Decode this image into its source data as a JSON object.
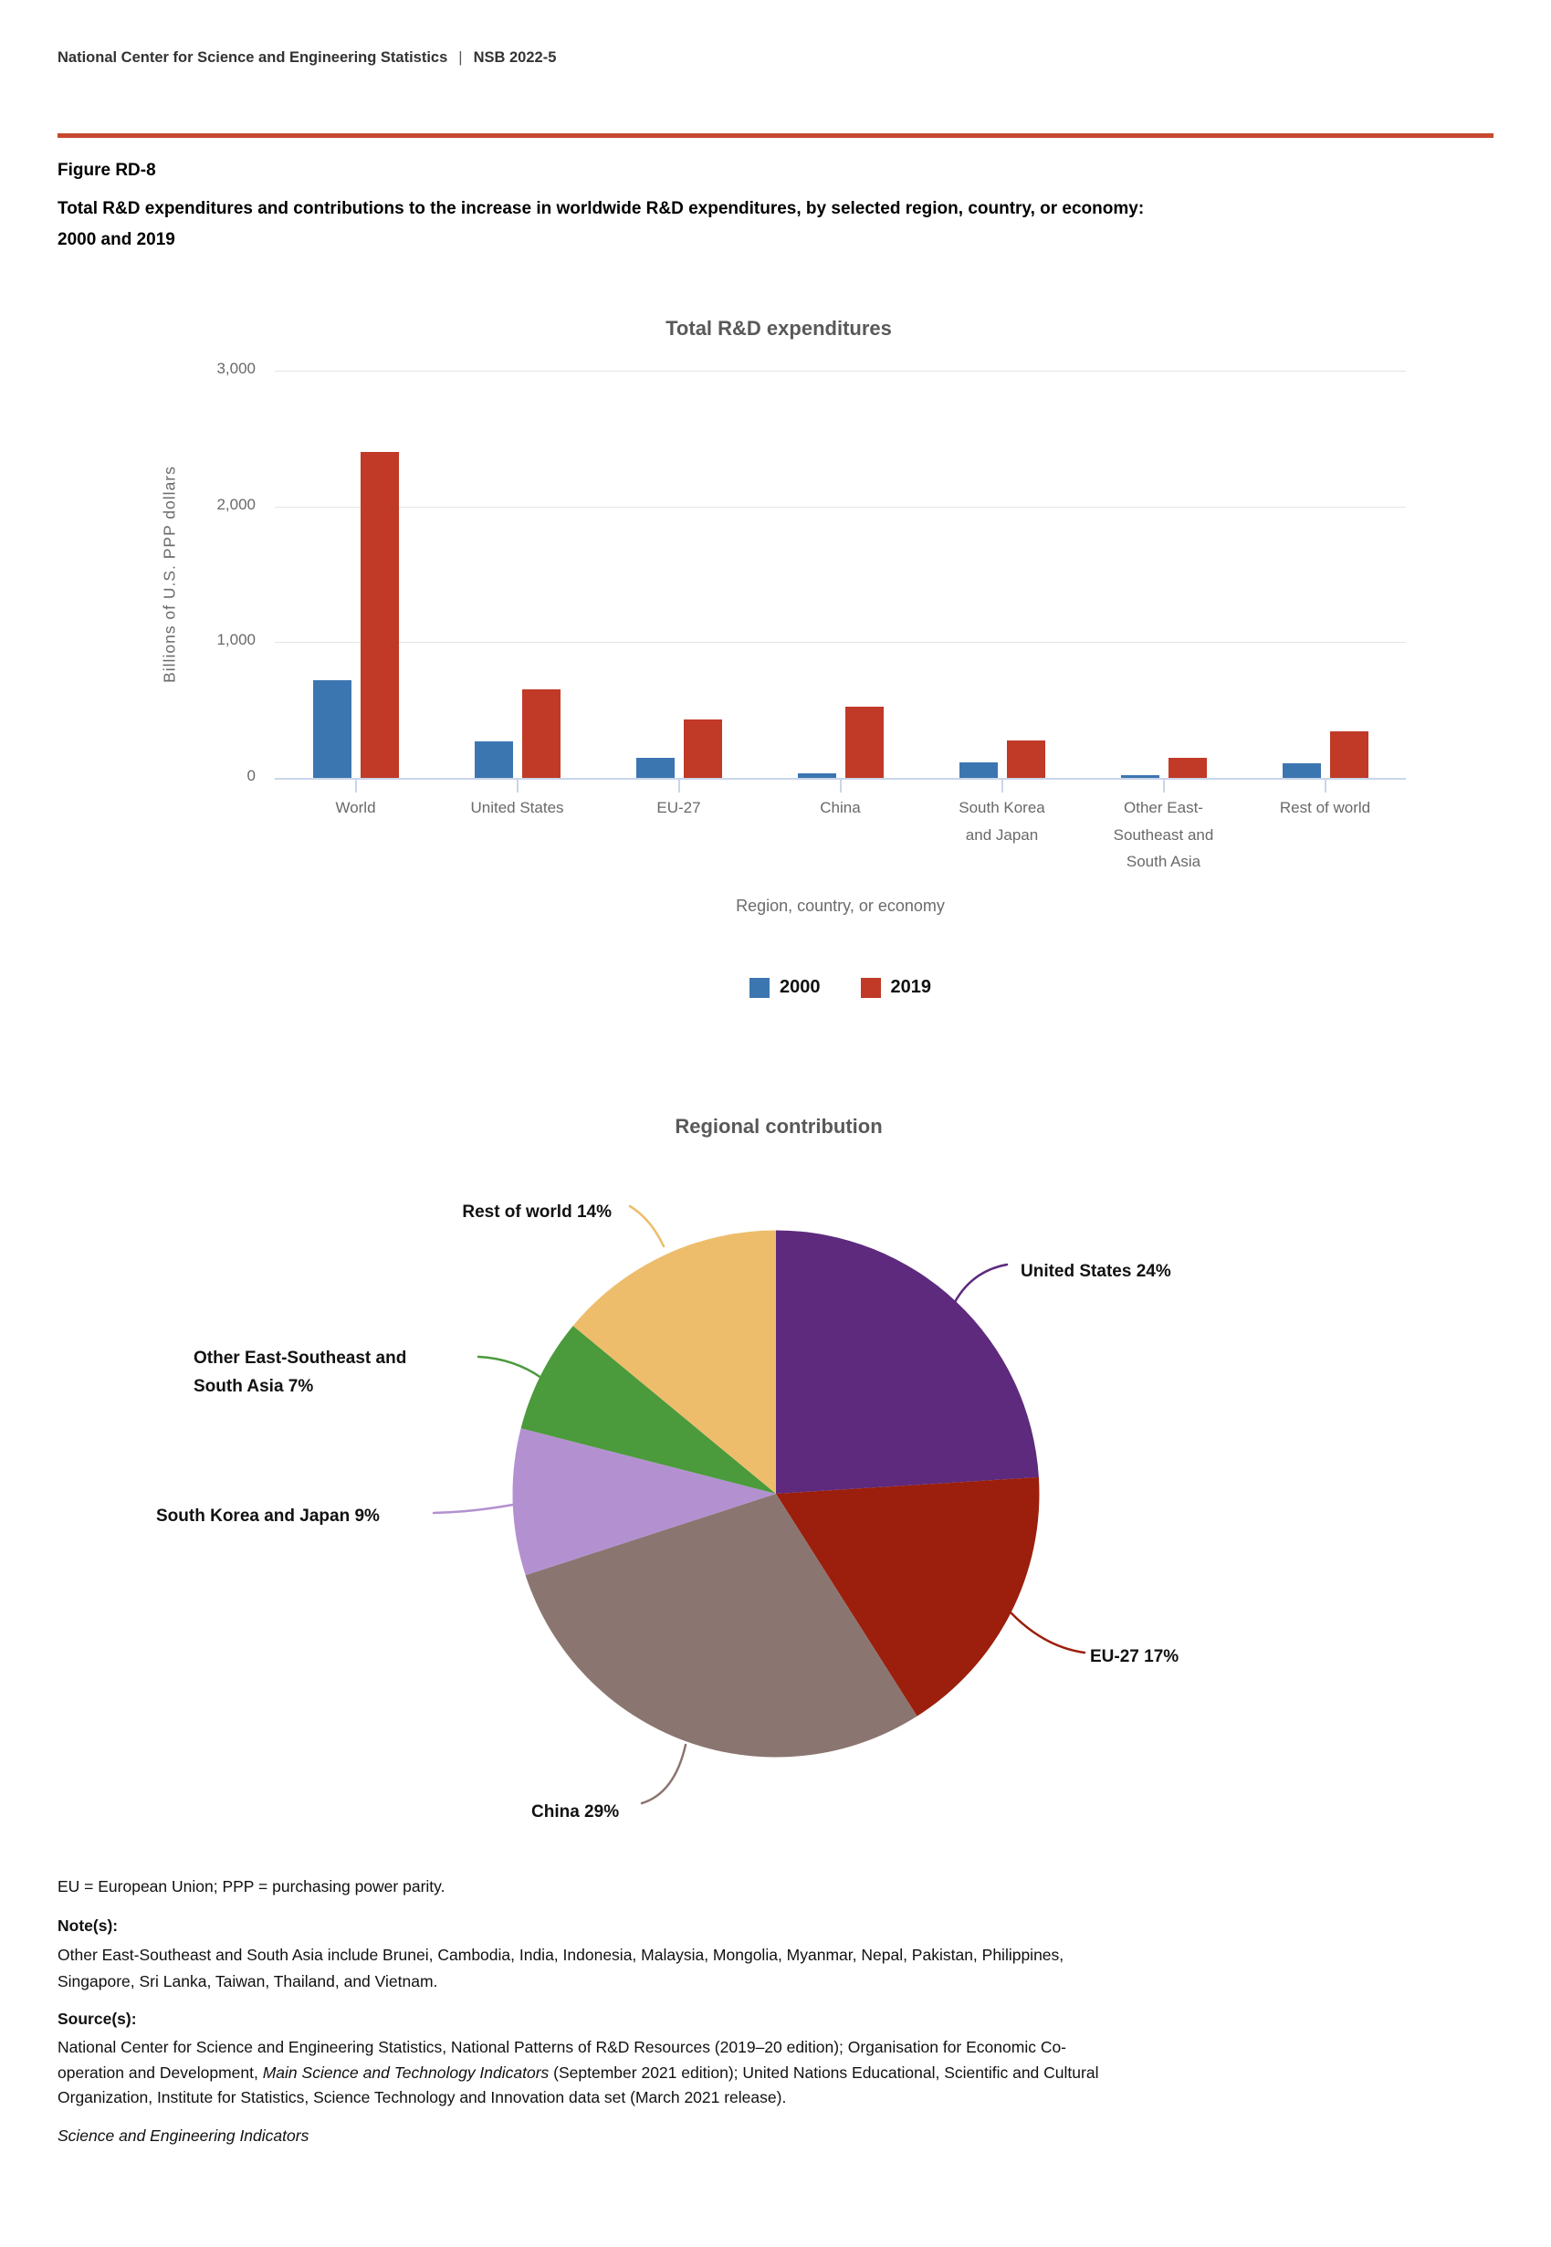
{
  "page": {
    "header_left": "National Center for Science and Engineering Statistics",
    "header_divider": "|",
    "header_right": "NSB 2022-5",
    "figure_label": "Figure RD-8",
    "title_lines": [
      "Total R&D expenditures and contributions to the increase in worldwide R&D expenditures, by selected region, country, or economy:",
      "2000 and 2019"
    ],
    "accent_color": "#c6492e"
  },
  "chart_data": [
    {
      "type": "bar",
      "title": "Total R&D expenditures",
      "categories": [
        "World",
        "United States",
        "EU-27",
        "China",
        "South Korea and Japan",
        "Other East-Southeast and South Asia",
        "Rest of world"
      ],
      "category_label_lines": [
        [
          "World"
        ],
        [
          "United States"
        ],
        [
          "EU-27"
        ],
        [
          "China"
        ],
        [
          "South Korea",
          "and Japan"
        ],
        [
          "Other East-",
          "Southeast and",
          "South Asia"
        ],
        [
          "Rest of world"
        ]
      ],
      "series": [
        {
          "name": "2000",
          "color": "#3c76b1",
          "values": [
            720,
            270,
            150,
            33,
            115,
            20,
            105
          ]
        },
        {
          "name": "2019",
          "color": "#c03a27",
          "values": [
            2400,
            655,
            430,
            525,
            275,
            145,
            345
          ]
        }
      ],
      "xlabel": "Region, country, or economy",
      "ylabel": "Billions of U.S. PPP dollars",
      "ylim": [
        0,
        3000
      ],
      "yticks": [
        {
          "value": 0,
          "label": "0"
        },
        {
          "value": 1000,
          "label": "1,000"
        },
        {
          "value": 2000,
          "label": "2,000"
        },
        {
          "value": 3000,
          "label": "3,000"
        }
      ],
      "grid": true,
      "legend_position": "bottom"
    },
    {
      "type": "pie",
      "title": "Regional contribution",
      "start_angle_deg": 0,
      "direction": "clockwise",
      "slices": [
        {
          "label": "United States",
          "pct": 24,
          "color": "#5d2a7d",
          "label_lines": [
            "United States 24%"
          ]
        },
        {
          "label": "EU-27",
          "pct": 17,
          "color": "#9c1e0c",
          "label_lines": [
            "EU-27 17%"
          ]
        },
        {
          "label": "China",
          "pct": 29,
          "color": "#8b7570",
          "label_lines": [
            "China 29%"
          ]
        },
        {
          "label": "South Korea and Japan",
          "pct": 9,
          "color": "#b391d1",
          "label_lines": [
            "South Korea and Japan 9%"
          ]
        },
        {
          "label": "Other East-Southeast and South Asia",
          "pct": 7,
          "color": "#4b9a3c",
          "label_lines": [
            "Other East-Southeast and",
            "South Asia 7%"
          ]
        },
        {
          "label": "Rest of world",
          "pct": 14,
          "color": "#edbd6c",
          "label_lines": [
            "Rest of world 14%"
          ]
        }
      ]
    }
  ],
  "footnotes": {
    "abbreviations": "EU = European Union; PPP = purchasing power parity.",
    "notes_heading": "Note(s):",
    "note_lines": [
      [
        {
          "t": "Other East-Southeast and South Asia include Brunei, Cambodia, India, Indonesia, Malaysia, Mongolia, Myanmar, Nepal, Pakistan, Philippines,"
        }
      ],
      [
        {
          "t": "Singapore, Sri Lanka, Taiwan, Thailand, and Vietnam."
        }
      ]
    ],
    "sources_heading": "Source(s):",
    "source_lines": [
      [
        {
          "t": "National Center for Science and Engineering Statistics, National Patterns of R&D Resources (2019–20 edition); Organisation for Economic Co-"
        }
      ],
      [
        {
          "t": "operation and Development, "
        },
        {
          "t": "Main Science and Technology Indicators",
          "i": true
        },
        {
          "t": " (September 2021 edition); United Nations Educational, Scientific and Cultural"
        }
      ],
      [
        {
          "t": "Organization, Institute for Statistics, Science Technology and Innovation data set (March 2021 release)."
        }
      ]
    ],
    "publication": "Science and Engineering Indicators"
  }
}
